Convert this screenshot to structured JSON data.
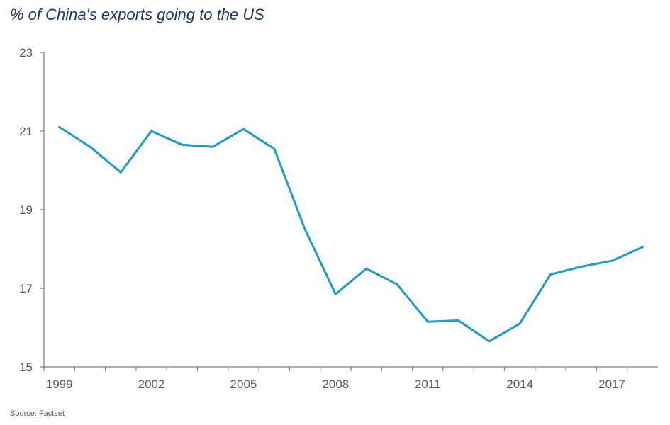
{
  "chart_data": {
    "type": "line",
    "title": "% of China's exports going to the US",
    "xlabel": "",
    "ylabel": "",
    "x": [
      1999,
      2000,
      2001,
      2002,
      2003,
      2004,
      2005,
      2006,
      2007,
      2008,
      2009,
      2010,
      2011,
      2012,
      2013,
      2014,
      2015,
      2016,
      2017,
      2018
    ],
    "series": [
      {
        "values": [
          21.1,
          20.6,
          19.95,
          21.0,
          20.65,
          20.6,
          21.05,
          20.55,
          18.5,
          16.85,
          17.5,
          17.1,
          16.15,
          16.18,
          15.65,
          16.1,
          17.35,
          17.55,
          17.7,
          18.05
        ],
        "color": "#1f9ac9"
      }
    ],
    "xticks": [
      "1999",
      "2002",
      "2005",
      "2008",
      "2011",
      "2014",
      "2017"
    ],
    "yticks": [
      "15",
      "17",
      "19",
      "21",
      "23"
    ],
    "xlim": [
      1998.5,
      2018.5
    ],
    "ylim": [
      15,
      23
    ],
    "grid": false,
    "legend": "none",
    "source": "Source: Factset"
  }
}
